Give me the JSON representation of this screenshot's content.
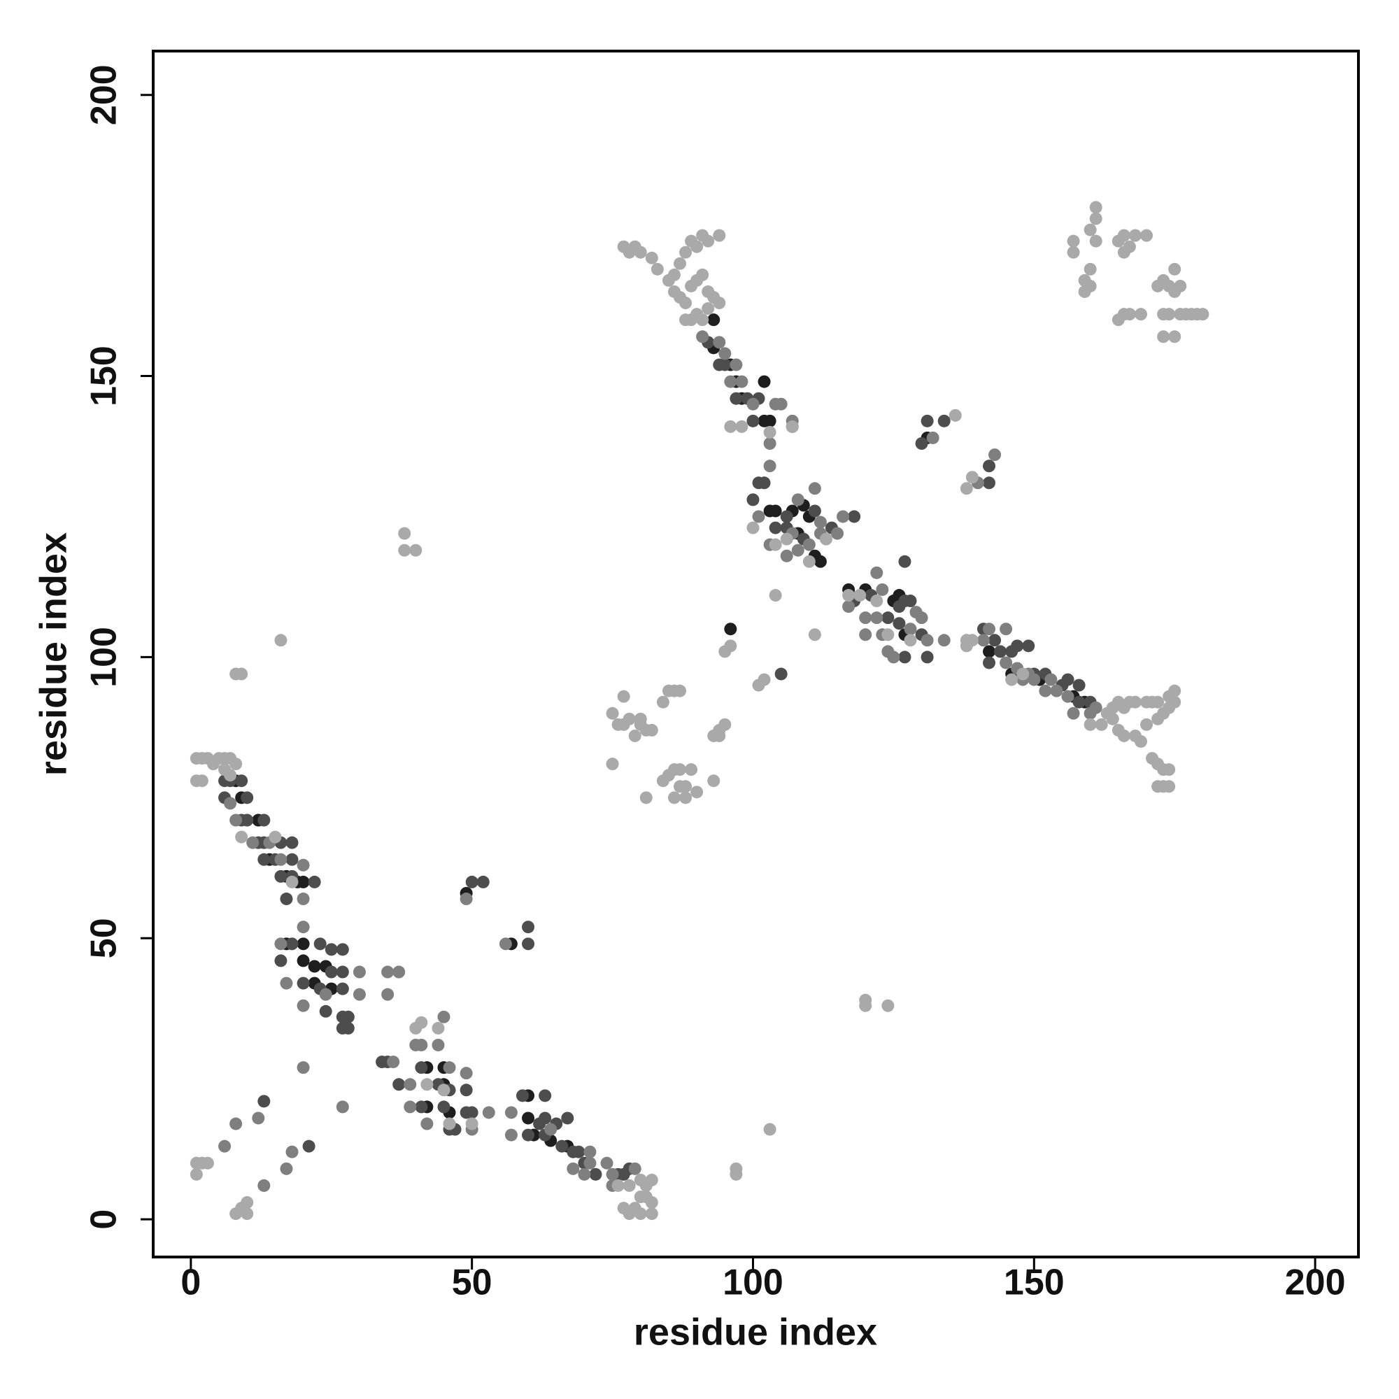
{
  "chart_data": {
    "type": "scatter",
    "xlabel": "residue index",
    "ylabel": "residue index",
    "xlim": [
      -6.7,
      207.7
    ],
    "ylim": [
      -6.7,
      207.8
    ],
    "xticks": [
      0,
      50,
      100,
      150,
      200
    ],
    "yticks": [
      0,
      50,
      100,
      150,
      200
    ],
    "grid": false,
    "series": [
      {
        "color": "#1e1e1e",
        "x": [
          8,
          9,
          12,
          14,
          17,
          19,
          20,
          17,
          20,
          20,
          22,
          24,
          22,
          25,
          42,
          45,
          45,
          42,
          46,
          60,
          60,
          61,
          64,
          67,
          93,
          93,
          96,
          97,
          98,
          102,
          103,
          102,
          103,
          104,
          107,
          109,
          110,
          108,
          111,
          112,
          117,
          120,
          125,
          126,
          127,
          142,
          146,
          151,
          157,
          159,
          131,
          49,
          57,
          96
        ],
        "values": [
          78,
          75,
          71,
          64,
          61,
          60,
          60,
          49,
          49,
          46,
          45,
          45,
          42,
          41,
          27,
          27,
          24,
          20,
          19,
          22,
          18,
          15,
          14,
          13,
          160,
          155,
          152,
          149,
          146,
          142,
          142,
          149,
          126,
          126,
          126,
          127,
          125,
          122,
          118,
          117,
          112,
          112,
          110,
          111,
          104,
          101,
          97,
          96,
          93,
          92,
          139,
          58,
          49,
          105
        ]
      },
      {
        "color": "#4d4d4d",
        "x": [
          6,
          7,
          9,
          10,
          6,
          9,
          10,
          13,
          12,
          13,
          16,
          18,
          13,
          15,
          18,
          16,
          18,
          22,
          17,
          16,
          18,
          23,
          25,
          27,
          25,
          27,
          20,
          23,
          27,
          24,
          27,
          28,
          27,
          28,
          34,
          35,
          37,
          41,
          44,
          46,
          49,
          41,
          45,
          49,
          50,
          47,
          46,
          59,
          63,
          62,
          63,
          65,
          67,
          60,
          63,
          66,
          68,
          69,
          70,
          72,
          76,
          77,
          78,
          13,
          21,
          50,
          52,
          60,
          60,
          92,
          94,
          95,
          97,
          99,
          100,
          101,
          107,
          101,
          102,
          100,
          106,
          111,
          114,
          118,
          104,
          106,
          109,
          118,
          121,
          124,
          126,
          127,
          128,
          126,
          127,
          130,
          127,
          131,
          141,
          143,
          147,
          149,
          144,
          146,
          142,
          150,
          152,
          155,
          156,
          158,
          158,
          160,
          130,
          131,
          134,
          142,
          142,
          105
        ],
        "values": [
          78,
          78,
          78,
          75,
          75,
          71,
          71,
          71,
          67,
          67,
          67,
          67,
          64,
          64,
          64,
          61,
          61,
          60,
          57,
          46,
          49,
          49,
          48,
          48,
          44,
          44,
          42,
          41,
          41,
          37,
          36,
          36,
          34,
          34,
          28,
          28,
          24,
          27,
          24,
          23,
          23,
          20,
          20,
          19,
          19,
          16,
          16,
          22,
          22,
          17,
          18,
          17,
          18,
          15,
          15,
          13,
          12,
          12,
          10,
          8,
          8,
          8,
          9,
          21,
          13,
          60,
          60,
          52,
          49,
          156,
          152,
          152,
          146,
          146,
          142,
          146,
          141,
          131,
          131,
          128,
          125,
          126,
          123,
          125,
          123,
          123,
          121,
          110,
          111,
          107,
          109,
          110,
          110,
          106,
          117,
          104,
          100,
          100,
          105,
          103,
          102,
          102,
          101,
          101,
          99,
          97,
          97,
          95,
          96,
          95,
          92,
          92,
          138,
          142,
          142,
          131,
          134,
          97
        ]
      },
      {
        "color": "#7f7f7f",
        "x": [
          7,
          8,
          11,
          14,
          16,
          20,
          20,
          16,
          20,
          17,
          20,
          24,
          30,
          35,
          37,
          30,
          35,
          36,
          39,
          40,
          41,
          44,
          45,
          46,
          49,
          39,
          50,
          53,
          42,
          57,
          64,
          57,
          71,
          71,
          74,
          68,
          70,
          75,
          79,
          75,
          6,
          13,
          17,
          18,
          8,
          12,
          20,
          27,
          49,
          56,
          91,
          94,
          95,
          97,
          96,
          98,
          100,
          104,
          105,
          107,
          103,
          103,
          101,
          108,
          111,
          112,
          115,
          116,
          107,
          108,
          110,
          112,
          103,
          106,
          122,
          123,
          129,
          130,
          117,
          120,
          122,
          128,
          131,
          123,
          124,
          125,
          134,
          142,
          145,
          141,
          145,
          147,
          149,
          148,
          150,
          153,
          152,
          154,
          156,
          157,
          160,
          161,
          132,
          140,
          143,
          120
        ],
        "values": [
          74,
          71,
          67,
          67,
          64,
          63,
          57,
          49,
          52,
          42,
          38,
          40,
          44,
          44,
          44,
          40,
          40,
          28,
          24,
          31,
          31,
          31,
          36,
          27,
          26,
          20,
          16,
          19,
          17,
          19,
          16,
          15,
          12,
          10,
          10,
          9,
          8,
          8,
          9,
          6,
          13,
          6,
          9,
          12,
          17,
          18,
          27,
          20,
          57,
          49,
          157,
          156,
          154,
          152,
          149,
          149,
          145,
          145,
          145,
          142,
          138,
          134,
          125,
          128,
          130,
          124,
          122,
          125,
          122,
          119,
          120,
          122,
          120,
          118,
          115,
          112,
          108,
          107,
          109,
          107,
          107,
          105,
          103,
          104,
          101,
          100,
          103,
          105,
          105,
          103,
          99,
          98,
          97,
          96,
          96,
          96,
          94,
          94,
          93,
          90,
          90,
          91,
          139,
          131,
          136,
          104
        ]
      },
      {
        "color": "#a9a9a9",
        "x": [
          1,
          2,
          3,
          4,
          5,
          6,
          7,
          8,
          1,
          2,
          6,
          7,
          9,
          15,
          18,
          40,
          41,
          44,
          42,
          45,
          46,
          50,
          80,
          81,
          82,
          77,
          78,
          80,
          82,
          79,
          80,
          81,
          82,
          76,
          78,
          1,
          2,
          3,
          1,
          8,
          9,
          10,
          10,
          16,
          8,
          9,
          38,
          38,
          40,
          97,
          97,
          103,
          120,
          120,
          124,
          111,
          104,
          95,
          96,
          101,
          102,
          138,
          139,
          136,
          138,
          139,
          77,
          78,
          79,
          80,
          82,
          83,
          85,
          86,
          87,
          88,
          89,
          90,
          91,
          92,
          94,
          86,
          87,
          88,
          89,
          90,
          91,
          92,
          93,
          94,
          88,
          89,
          90,
          91,
          92,
          96,
          98,
          103,
          107,
          100,
          104,
          106,
          110,
          113,
          117,
          119,
          122,
          124,
          128,
          138,
          146,
          148,
          160,
          162,
          164,
          165,
          166,
          168,
          169,
          170,
          172,
          173,
          174,
          175,
          163,
          164,
          165,
          166,
          167,
          168,
          170,
          171,
          172,
          174,
          175,
          171,
          172,
          173,
          174,
          172,
          173,
          174,
          157,
          157,
          159,
          159,
          160,
          160,
          161,
          160,
          161,
          161,
          165,
          166,
          166,
          167,
          168,
          170,
          165,
          166,
          167,
          169,
          172,
          173,
          174,
          175,
          175,
          176,
          173,
          174,
          176,
          177,
          178,
          179,
          180,
          173,
          175,
          75,
          76,
          77,
          77,
          78,
          79,
          80,
          80,
          81,
          82,
          75,
          81,
          84,
          85,
          86,
          87,
          84,
          85,
          86,
          87,
          87,
          88,
          86,
          88,
          89,
          90,
          93,
          93,
          94,
          95,
          94
        ],
        "values": [
          82,
          82,
          82,
          81,
          82,
          82,
          82,
          81,
          78,
          78,
          80,
          79,
          68,
          68,
          60,
          34,
          35,
          34,
          24,
          23,
          17,
          17,
          4,
          4,
          3,
          2,
          1,
          1,
          1,
          2,
          7,
          6,
          7,
          6,
          6,
          10,
          10,
          10,
          8,
          1,
          2,
          1,
          3,
          103,
          97,
          97,
          122,
          119,
          119,
          9,
          8,
          16,
          38,
          39,
          38,
          104,
          111,
          101,
          102,
          95,
          96,
          130,
          132,
          143,
          103,
          103,
          173,
          172,
          173,
          172,
          171,
          169,
          167,
          168,
          170,
          172,
          174,
          173,
          175,
          174,
          175,
          165,
          164,
          163,
          166,
          167,
          168,
          165,
          164,
          163,
          160,
          160,
          161,
          160,
          162,
          141,
          141,
          140,
          141,
          123,
          120,
          121,
          117,
          121,
          111,
          111,
          110,
          104,
          103,
          102,
          96,
          97,
          88,
          88,
          89,
          87,
          86,
          86,
          85,
          88,
          89,
          90,
          91,
          92,
          90,
          91,
          92,
          91,
          92,
          92,
          92,
          92,
          92,
          93,
          94,
          82,
          81,
          80,
          80,
          77,
          77,
          77,
          174,
          172,
          165,
          167,
          166,
          169,
          174,
          176,
          178,
          180,
          174,
          175,
          172,
          173,
          175,
          175,
          160,
          161,
          161,
          161,
          166,
          167,
          166,
          165,
          169,
          166,
          161,
          161,
          161,
          161,
          161,
          161,
          161,
          157,
          157,
          90,
          88,
          93,
          88,
          89,
          86,
          88,
          89,
          87,
          87,
          81,
          75,
          92,
          94,
          94,
          94,
          78,
          79,
          80,
          80,
          77,
          77,
          75,
          75,
          80,
          76,
          78,
          86,
          87,
          88,
          86
        ]
      }
    ]
  }
}
